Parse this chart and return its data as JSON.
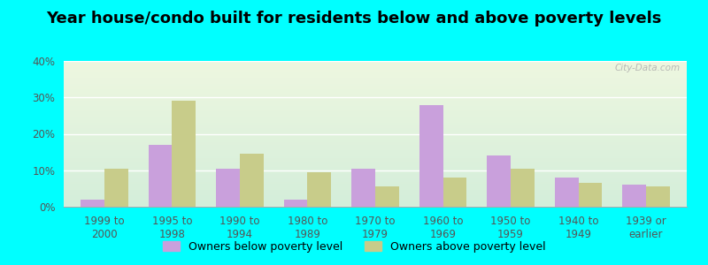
{
  "title": "Year house/condo built for residents below and above poverty levels",
  "categories": [
    "1999 to\n2000",
    "1995 to\n1998",
    "1990 to\n1994",
    "1980 to\n1989",
    "1970 to\n1979",
    "1960 to\n1969",
    "1950 to\n1959",
    "1940 to\n1949",
    "1939 or\nearlier"
  ],
  "below_poverty": [
    2,
    17,
    10.5,
    2,
    10.5,
    28,
    14,
    8,
    6
  ],
  "above_poverty": [
    10.5,
    29,
    14.5,
    9.5,
    5.5,
    8,
    10.5,
    6.5,
    5.5
  ],
  "below_color": "#c9a0dc",
  "above_color": "#c8cc8a",
  "background_color": "#00ffff",
  "grad_top": "#d4eeda",
  "grad_bottom": "#eef7e0",
  "ylim": [
    0,
    40
  ],
  "yticks": [
    0,
    10,
    20,
    30,
    40
  ],
  "ytick_labels": [
    "0%",
    "10%",
    "20%",
    "30%",
    "40%"
  ],
  "legend_below_label": "Owners below poverty level",
  "legend_above_label": "Owners above poverty level",
  "title_fontsize": 13,
  "tick_fontsize": 8.5,
  "bar_width": 0.35
}
